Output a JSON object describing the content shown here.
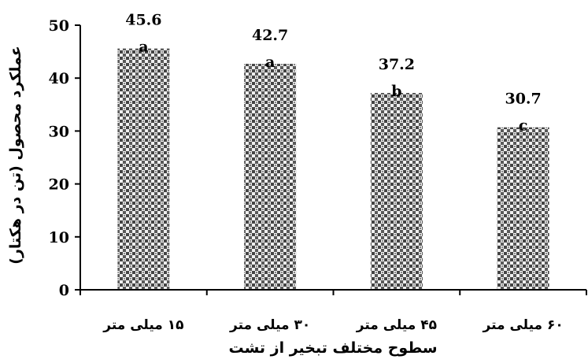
{
  "chart_data": {
    "type": "bar",
    "categories": [
      "۱۵ میلی متر",
      "۳۰ میلی متر",
      "۴۵ میلی متر",
      "۶۰ میلی متر"
    ],
    "values": [
      45.6,
      42.7,
      37.2,
      30.7
    ],
    "value_labels": [
      "45.6",
      "42.7",
      "37.2",
      "30.7"
    ],
    "group_letters": [
      "a",
      "a",
      "b",
      "c"
    ],
    "xlabel": "سطوح مختلف تبخیر از تشت",
    "ylabel": "عملکرد محصول (تن در هکتار)",
    "ylim": [
      0,
      50
    ],
    "yticks": [
      "0",
      "10",
      "20",
      "30",
      "40",
      "50"
    ],
    "grid": false,
    "bar_fill": "dotted-pattern",
    "colors": {
      "bar_dark": "#4a4a4a",
      "bar_light": "#ececec",
      "axis": "#000000"
    }
  }
}
